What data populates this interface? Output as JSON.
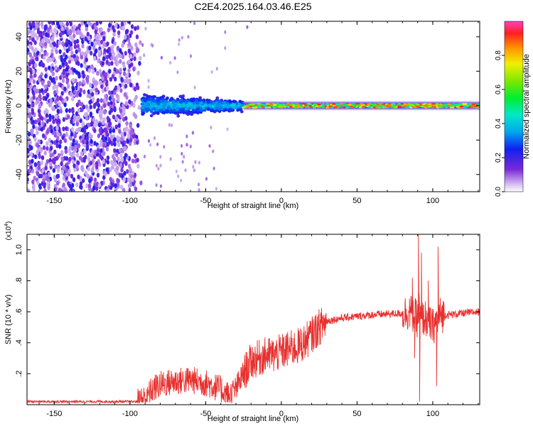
{
  "title": "C2E4.2025.164.03.46.E25",
  "chart_data": [
    {
      "type": "heatmap",
      "xlabel": "Height of straight line (km)",
      "ylabel": "Frequency (Hz)",
      "xlim": [
        -168,
        131
      ],
      "ylim": [
        -50,
        49
      ],
      "xticks": [
        -150,
        -100,
        -50,
        0,
        50,
        100
      ],
      "yticks": [
        -40,
        -20,
        0,
        20,
        40
      ],
      "colorbar": {
        "label": "Normalized spectral amplitude",
        "range": [
          0.0,
          1.0
        ],
        "ticks": [
          0.0,
          0.2,
          0.4,
          0.6,
          0.8
        ],
        "tick_labels": [
          "0.0",
          "0.2",
          "0.4",
          "0.6",
          "0.8"
        ]
      },
      "description_regions": [
        {
          "x_range": [
            -168,
            -92
          ],
          "freq_range": [
            -50,
            49
          ],
          "amplitude": [
            0.05,
            0.25
          ]
        },
        {
          "x_range": [
            -92,
            -25
          ],
          "freq_range": [
            -8,
            8
          ],
          "amplitude": [
            0.15,
            0.45
          ]
        },
        {
          "x_range": [
            -25,
            131
          ],
          "freq_range": [
            -2,
            2
          ],
          "amplitude": [
            0.4,
            0.95
          ]
        }
      ]
    },
    {
      "type": "line",
      "xlabel": "Height of straight line (km)",
      "ylabel": "SNR (10 * v/v)",
      "multiplier": "(x10",
      "multiplier_exp": "4",
      "xlim": [
        -168,
        131
      ],
      "ylim": [
        0.0,
        1.1
      ],
      "xticks": [
        -150,
        -100,
        -50,
        0,
        50,
        100
      ],
      "yticks": [
        0.2,
        0.4,
        0.6,
        0.8,
        1.0
      ],
      "series": [
        {
          "color": "#e8312f",
          "x": [
            -168,
            -120,
            -95,
            -90,
            -85,
            -80,
            -70,
            -60,
            -50,
            -40,
            -35,
            -30,
            -25,
            -20,
            -15,
            -10,
            -5,
            0,
            5,
            10,
            15,
            20,
            25,
            30,
            40,
            50,
            60,
            70,
            80,
            85,
            90,
            91,
            92,
            95,
            100,
            105,
            110,
            120,
            131
          ],
          "y": [
            0.02,
            0.02,
            0.02,
            0.04,
            0.1,
            0.13,
            0.15,
            0.16,
            0.14,
            0.1,
            0.06,
            0.1,
            0.2,
            0.28,
            0.3,
            0.32,
            0.32,
            0.34,
            0.36,
            0.37,
            0.4,
            0.45,
            0.5,
            0.54,
            0.56,
            0.57,
            0.58,
            0.585,
            0.59,
            0.6,
            0.55,
            0.62,
            0.55,
            0.56,
            0.5,
            0.58,
            0.58,
            0.59,
            0.6
          ],
          "spikes": [
            {
              "x": 90.5,
              "y": 1.1
            },
            {
              "x": 91.3,
              "y": 0.02
            },
            {
              "x": 92.5,
              "y": 0.98
            },
            {
              "x": 86.5,
              "y": 0.82
            },
            {
              "x": 88,
              "y": 0.3
            },
            {
              "x": 103.5,
              "y": 1.02
            },
            {
              "x": 102.5,
              "y": 0.12
            },
            {
              "x": 97,
              "y": 0.8
            }
          ]
        }
      ]
    }
  ]
}
